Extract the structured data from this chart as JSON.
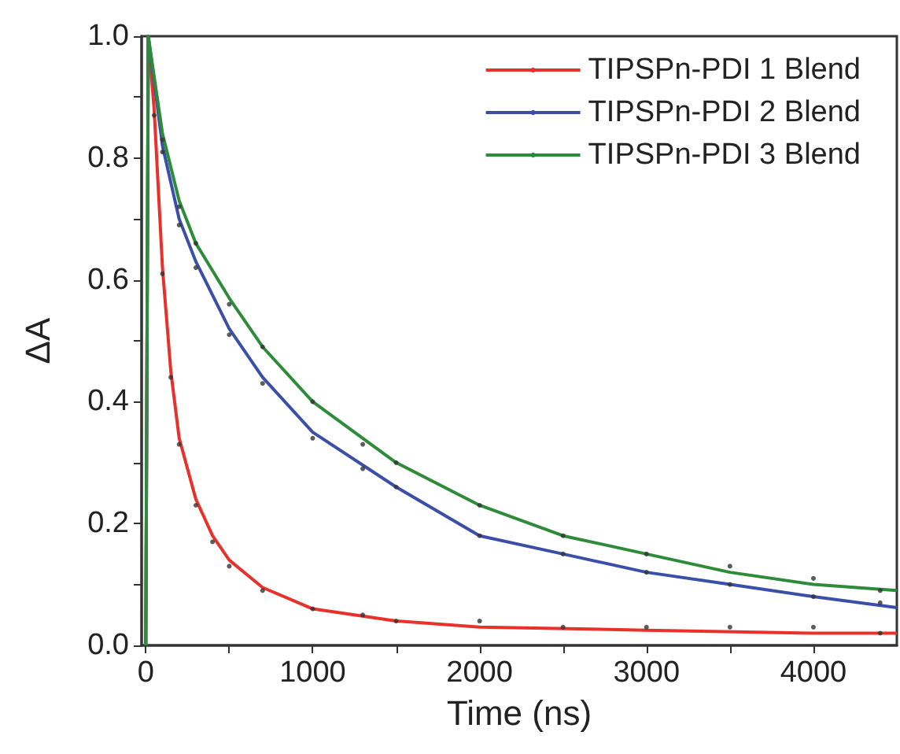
{
  "chart_data": {
    "type": "line",
    "xlabel": "Time (ns)",
    "ylabel": "ΔA",
    "xlim": [
      -25,
      4500
    ],
    "xticks": [
      0,
      {
        "value": 500,
        "label": null
      },
      1000,
      {
        "value": 1500,
        "label": null
      },
      2000,
      {
        "value": 2500,
        "label": null
      },
      3000,
      {
        "value": 3500,
        "label": null
      },
      4000
    ],
    "ylim": [
      0,
      1.0
    ],
    "yticks": [
      "0.0",
      {
        "value": 0.1,
        "label": null
      },
      0.2,
      {
        "value": 0.3,
        "label": null
      },
      0.4,
      {
        "value": 0.5,
        "label": null
      },
      0.6,
      {
        "value": 0.7,
        "label": null
      },
      0.8,
      {
        "value": 0.9,
        "label": null
      },
      "1.0"
    ],
    "grid": false,
    "legend": "top right",
    "series": [
      {
        "type": "scatter",
        "color": "#333333",
        "x": [
          50,
          100,
          150,
          200,
          300,
          400,
          500,
          700,
          1000,
          1300,
          1500,
          2000,
          2500,
          3000,
          3500,
          4000,
          4400
        ],
        "values": [
          0.87,
          0.61,
          0.44,
          0.33,
          0.23,
          0.17,
          0.13,
          0.09,
          0.06,
          0.05,
          0.04,
          0.04,
          0.03,
          0.03,
          0.03,
          0.03,
          0.02
        ]
      },
      {
        "type": "scatter",
        "color": "#333333",
        "x": [
          100,
          200,
          300,
          500,
          700,
          1000,
          1300,
          1500,
          2000,
          2500,
          3000,
          3500,
          4000,
          4400
        ],
        "values": [
          0.81,
          0.69,
          0.62,
          0.51,
          0.43,
          0.34,
          0.29,
          0.26,
          0.18,
          0.15,
          0.12,
          0.1,
          0.08,
          0.07
        ]
      },
      {
        "type": "scatter",
        "color": "#333333",
        "x": [
          100,
          200,
          300,
          500,
          700,
          1000,
          1300,
          1500,
          2000,
          2500,
          3000,
          3500,
          4000,
          4400
        ],
        "values": [
          0.83,
          0.72,
          0.66,
          0.56,
          0.49,
          0.4,
          0.33,
          0.3,
          0.23,
          0.18,
          0.15,
          0.13,
          0.11,
          0.09
        ]
      },
      {
        "name": "TIPSPn-PDI 1 Blend",
        "color": "#e8312a",
        "x": [
          0,
          15,
          50,
          100,
          150,
          200,
          300,
          400,
          500,
          700,
          1000,
          1500,
          2000,
          3000,
          4000,
          4500
        ],
        "values": [
          0,
          1.0,
          0.88,
          0.62,
          0.45,
          0.34,
          0.24,
          0.18,
          0.14,
          0.095,
          0.06,
          0.04,
          0.03,
          0.025,
          0.02,
          0.02
        ]
      },
      {
        "name": "TIPSPn-PDI 2 Blend",
        "color": "#3c4fa8",
        "x": [
          0,
          15,
          100,
          200,
          300,
          500,
          700,
          1000,
          1500,
          2000,
          2500,
          3000,
          3500,
          4000,
          4500
        ],
        "values": [
          0,
          1.0,
          0.82,
          0.7,
          0.63,
          0.52,
          0.44,
          0.35,
          0.26,
          0.18,
          0.15,
          0.12,
          0.1,
          0.08,
          0.062
        ]
      },
      {
        "name": "TIPSPn-PDI 3 Blend",
        "color": "#2e8b3a",
        "x": [
          0,
          15,
          100,
          200,
          300,
          500,
          700,
          1000,
          1500,
          2000,
          2500,
          3000,
          3500,
          4000,
          4500
        ],
        "values": [
          0,
          1.0,
          0.84,
          0.73,
          0.66,
          0.57,
          0.49,
          0.4,
          0.3,
          0.23,
          0.18,
          0.15,
          0.12,
          0.1,
          0.09
        ]
      }
    ]
  }
}
